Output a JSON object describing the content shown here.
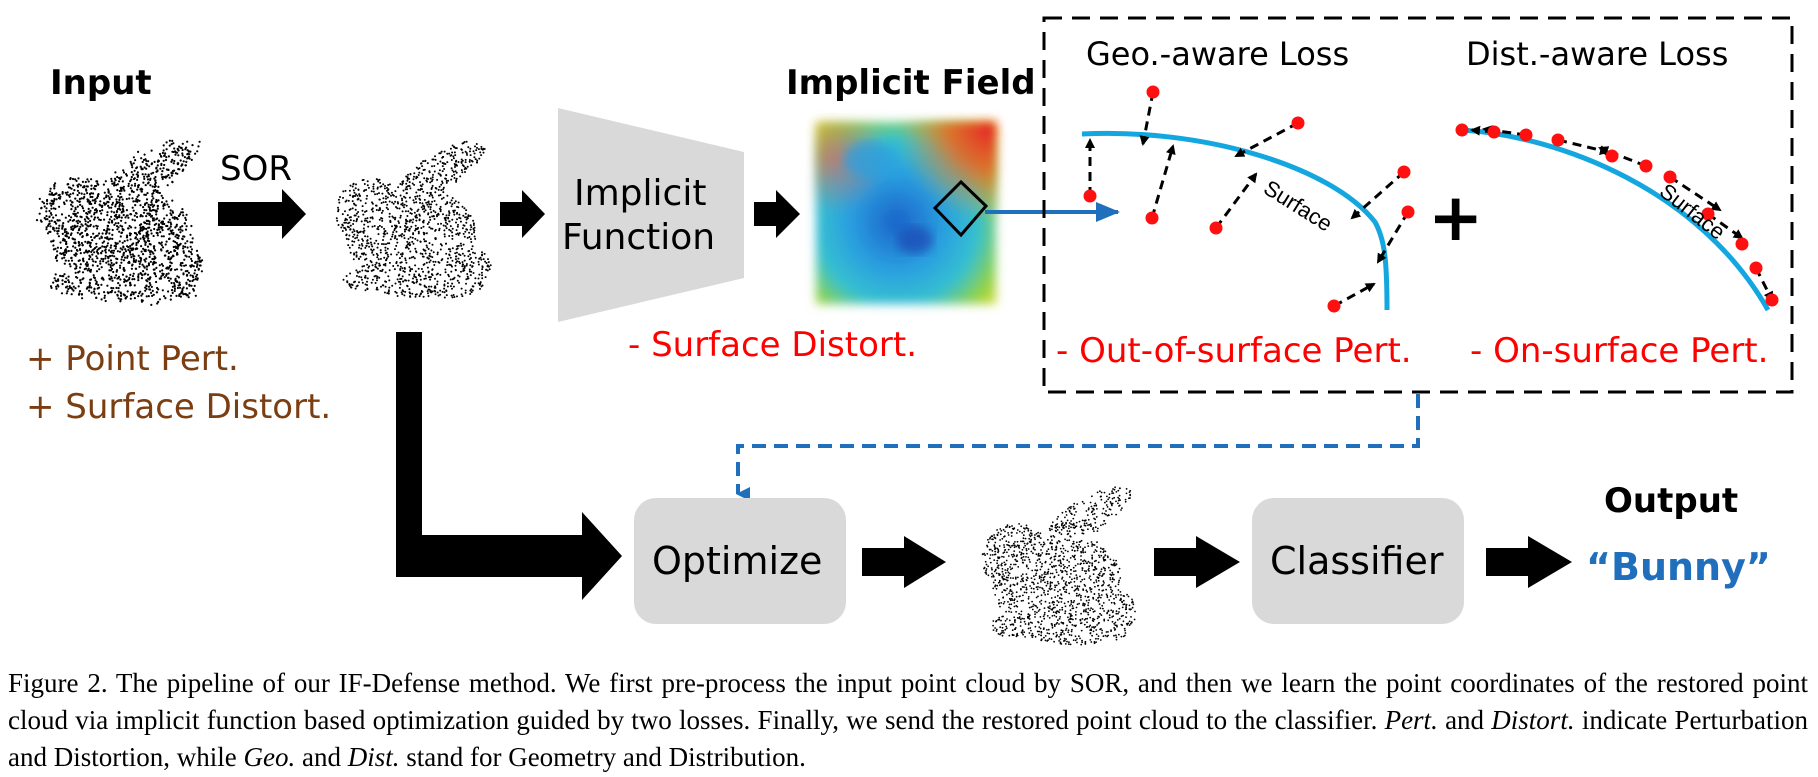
{
  "colors": {
    "black": "#000000",
    "gray_box": "#d9d9d9",
    "red": "#ff0000",
    "brown": "#7a3e12",
    "blue": "#1f6fbd",
    "surface_blue": "#14a7df"
  },
  "stages": {
    "input_title": "Input",
    "sor_label": "SOR",
    "implicit_function_line1": "Implicit",
    "implicit_function_line2": "Function",
    "implicit_field_title": "Implicit Field",
    "optimize": "Optimize",
    "classifier": "Classifier",
    "output_title": "Output",
    "output_value": "“Bunny”"
  },
  "perturbations": {
    "point_pert": "+ Point Pert.",
    "surface_distort_plus": "+ Surface Distort.",
    "surface_distort_minus": "- Surface Distort.",
    "out_of_surface": "- Out-of-surface Pert.",
    "on_surface": "- On-surface Pert."
  },
  "losses": {
    "geo_aware": "Geo.-aware Loss",
    "dist_aware": "Dist.-aware Loss",
    "surface_label_1": "Surface",
    "surface_label_2": "Surface",
    "plus_sign": "+"
  },
  "caption": {
    "part1": "Figure 2. The pipeline of our IF-Defense method. We first pre-process the input point cloud by SOR, and then we learn the point coordinates of the restored point cloud via implicit function based optimization guided by two losses. Finally, we send the restored point cloud to the classifier. ",
    "pert_term": "Pert.",
    "and1": " and ",
    "distort_term": "Distort.",
    "part2": " indicate Perturbation and Distortion, while ",
    "geo_term": "Geo.",
    "and2": " and ",
    "dist_term": "Dist.",
    "part3": " stand for Geometry and Distribution."
  }
}
